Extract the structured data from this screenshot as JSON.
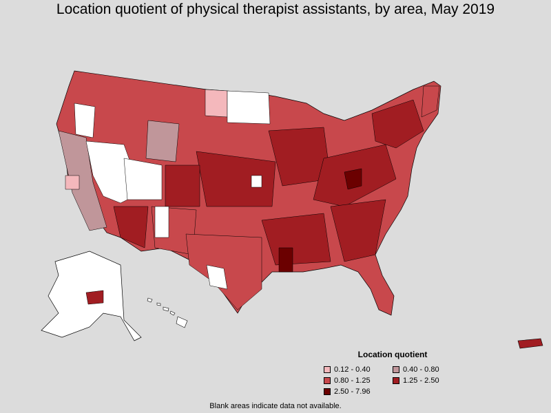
{
  "title": "Location quotient of physical therapist assistants, by area, May 2019",
  "legend": {
    "title": "Location quotient",
    "items": [
      {
        "label": "0.12 - 0.40",
        "color": "#f4b8bc"
      },
      {
        "label": "0.40 - 0.80",
        "color": "#c0969a"
      },
      {
        "label": "0.80 - 1.25",
        "color": "#c8484c"
      },
      {
        "label": "1.25 - 2.50",
        "color": "#a11d22"
      },
      {
        "label": "2.50 - 7.96",
        "color": "#6b0000"
      }
    ],
    "no_data_color": "#ffffff"
  },
  "footnote": "Blank areas indicate data not available."
}
